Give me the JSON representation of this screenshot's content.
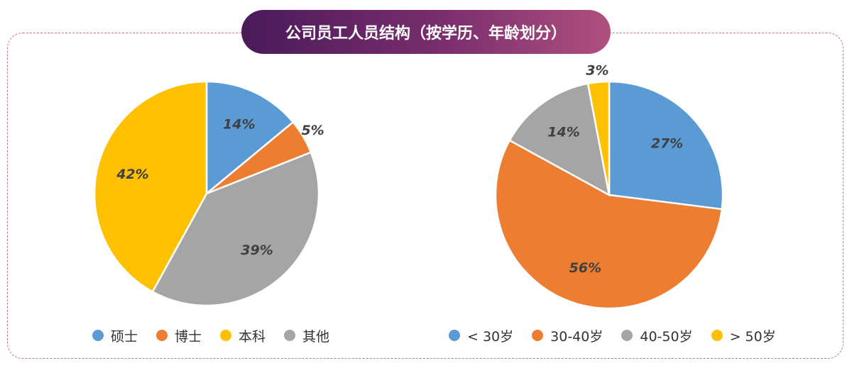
{
  "header": {
    "title": "公司员工人员结构（按学历、年龄划分）"
  },
  "chart_data": [
    {
      "type": "pie",
      "categories": [
        "硕士",
        "博士",
        "其他",
        "本科"
      ],
      "values": [
        14,
        5,
        39,
        42
      ],
      "value_labels": [
        "14%",
        "5%",
        "39%",
        "42%"
      ],
      "colors": [
        "#5b9bd5",
        "#ed7d31",
        "#a5a5a5",
        "#ffc000"
      ]
    },
    {
      "type": "pie",
      "categories": [
        "< 30岁",
        "30-40岁",
        "40-50岁",
        "> 50岁"
      ],
      "values": [
        27,
        56,
        14,
        3
      ],
      "value_labels": [
        "27%",
        "56%",
        "14%",
        "3%"
      ],
      "colors": [
        "#5b9bd5",
        "#ed7d31",
        "#a5a5a5",
        "#ffc000"
      ]
    }
  ]
}
